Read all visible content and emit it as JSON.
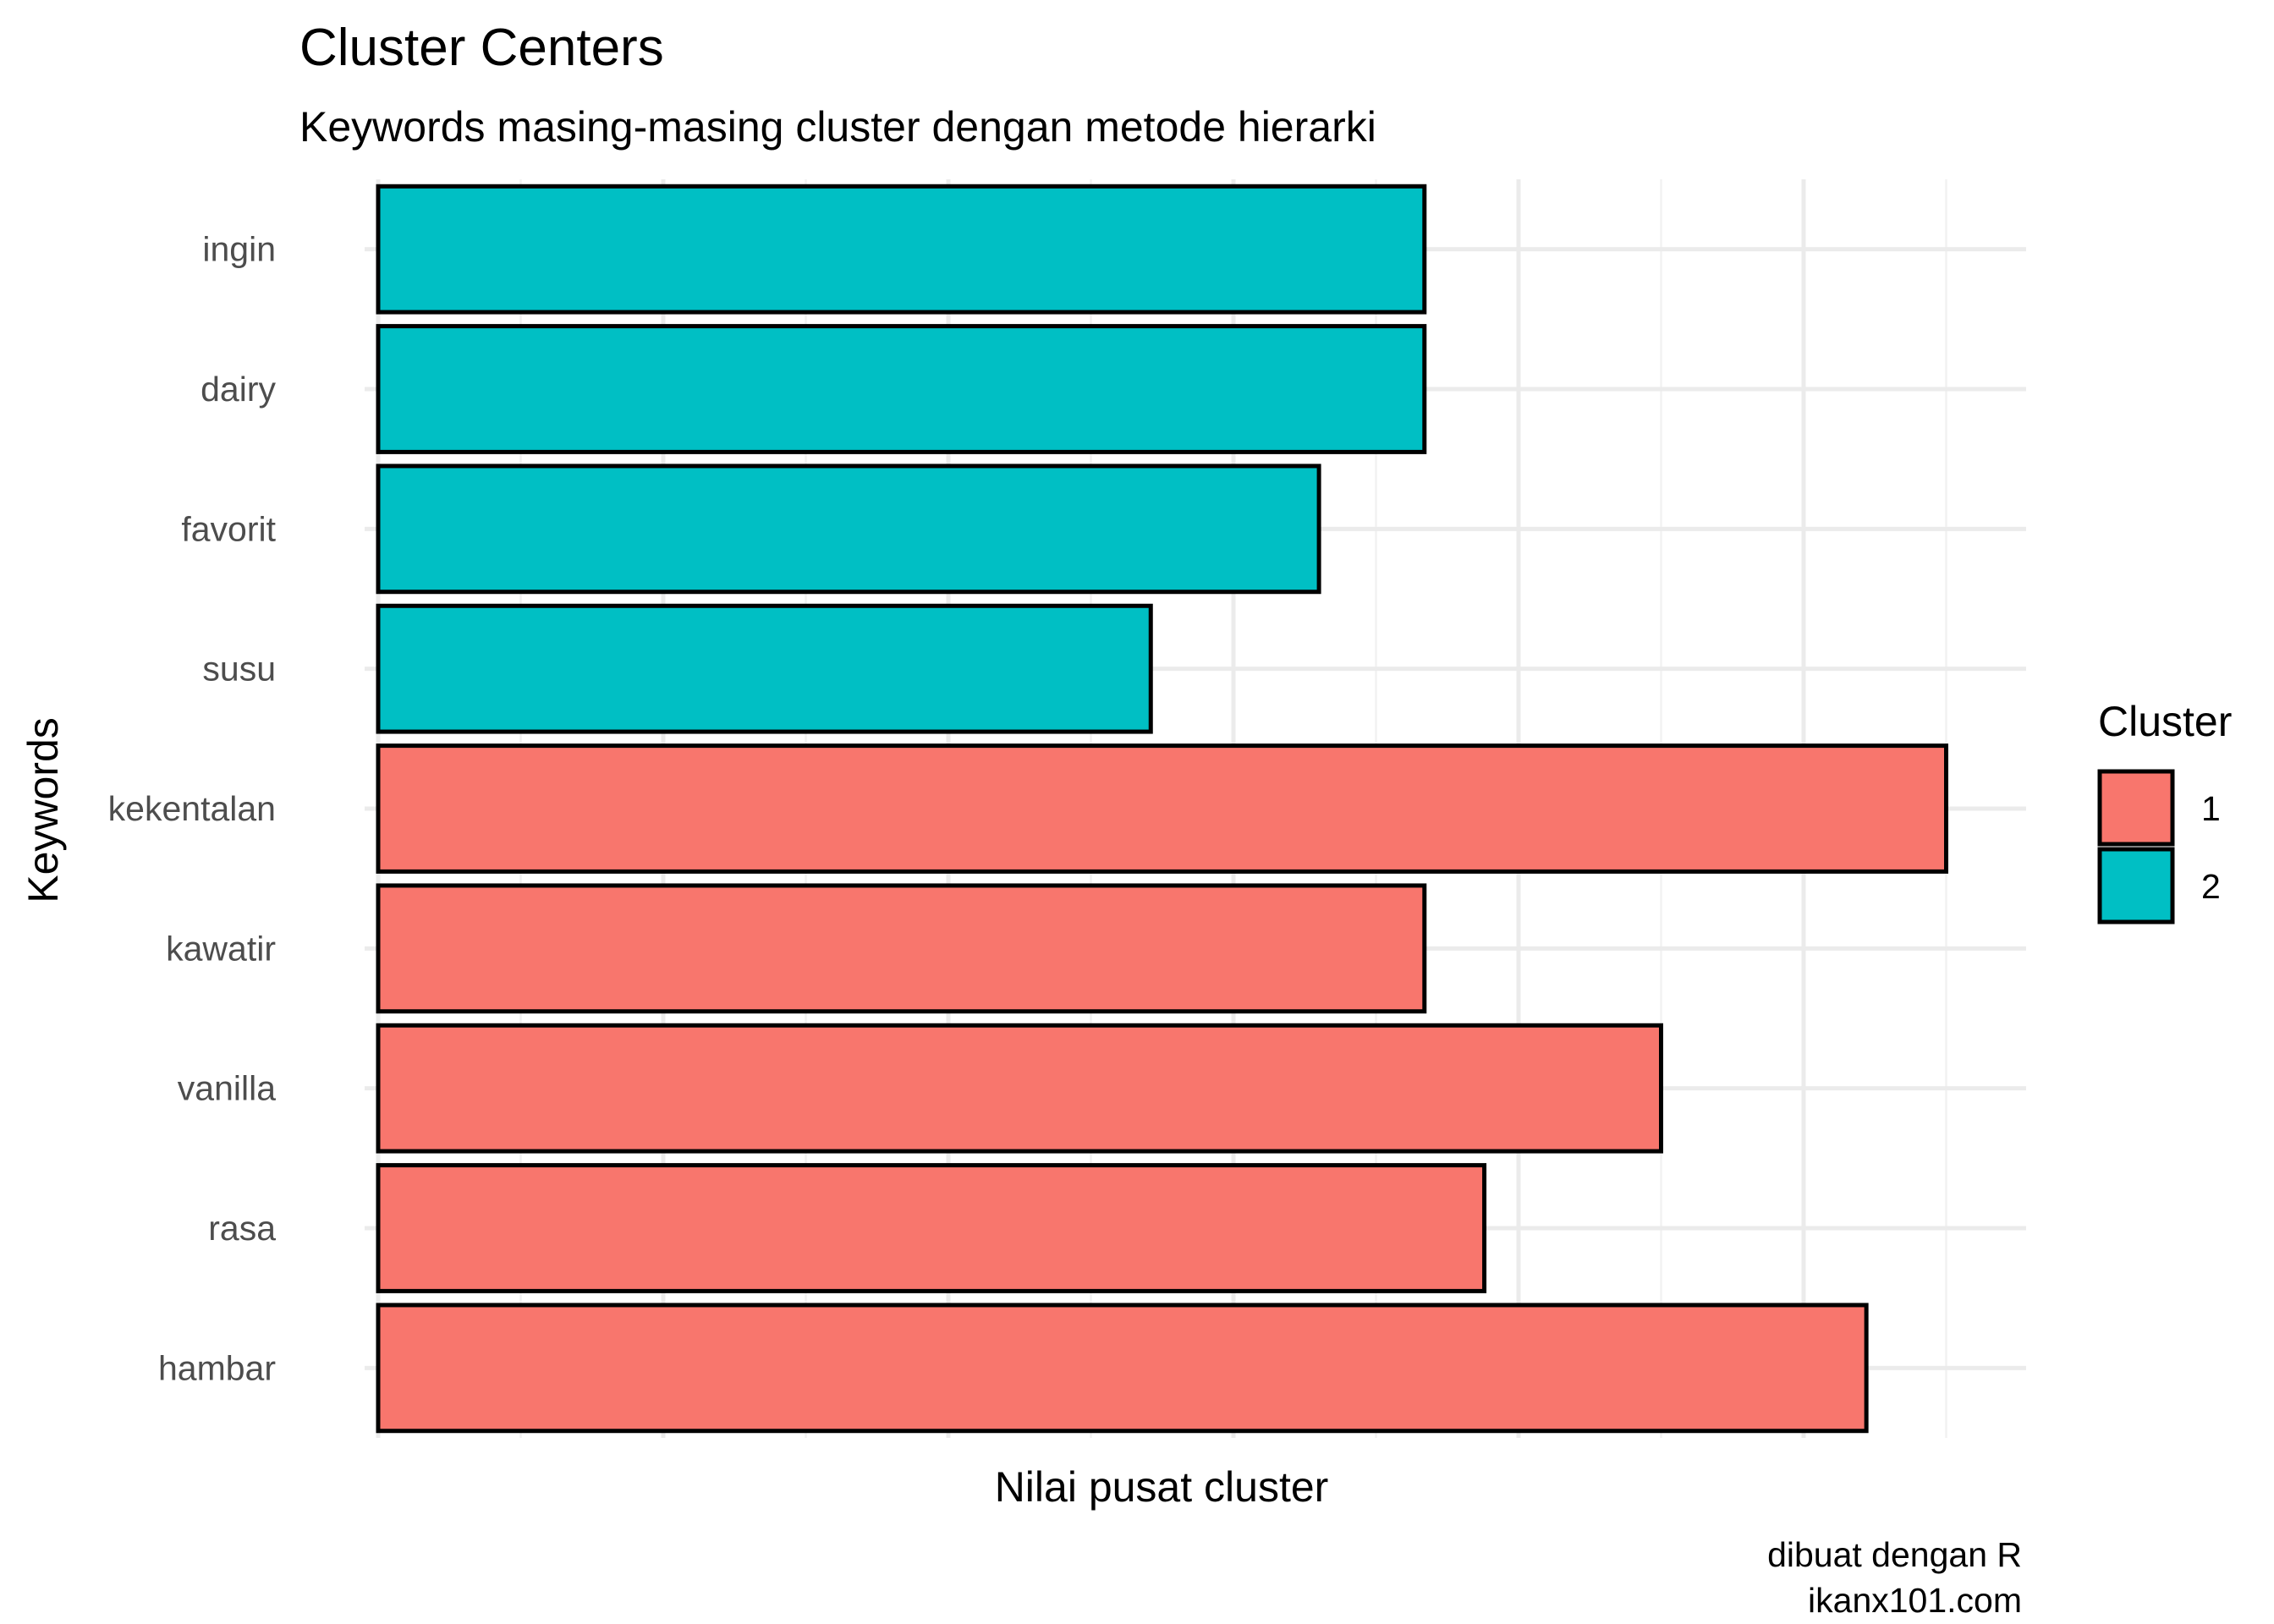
{
  "chart_data": {
    "type": "bar",
    "orientation": "horizontal",
    "title": "Cluster Centers",
    "subtitle": "Keywords masing-masing cluster dengan metode hierarki",
    "xlabel": "Nilai pusat cluster",
    "ylabel": "Keywords",
    "x_tick_labels_shown": false,
    "xlim": [
      0,
      5.77
    ],
    "grid": true,
    "categories": [
      "ingin",
      "dairy",
      "favorit",
      "susu",
      "kekentalan",
      "kawatir",
      "vanilla",
      "rasa",
      "hambar"
    ],
    "values": [
      3.67,
      3.67,
      3.3,
      2.71,
      5.5,
      3.67,
      4.5,
      3.88,
      5.22
    ],
    "clusters": [
      "2",
      "2",
      "2",
      "2",
      "1",
      "1",
      "1",
      "1",
      "1"
    ],
    "legend": {
      "title": "Cluster",
      "placement": "right",
      "entries": [
        {
          "label": "1",
          "color": "#F8766D"
        },
        {
          "label": "2",
          "color": "#00BFC4"
        }
      ]
    },
    "caption": [
      "dibuat dengan R",
      "ikanx101.com"
    ]
  }
}
